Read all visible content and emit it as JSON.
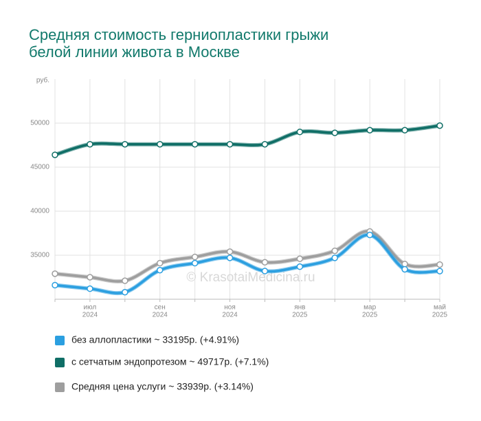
{
  "chart_data": {
    "type": "line",
    "title": [
      "Средняя стоимость герниопластики грыжи",
      "белой линии живота в Москве"
    ],
    "y_unit": "руб.",
    "annotation": "© KrasotaiMedicina.ru",
    "categories": [
      null,
      [
        "июл",
        "2024"
      ],
      null,
      [
        "сен",
        "2024"
      ],
      null,
      [
        "ноя",
        "2024"
      ],
      null,
      [
        "янв",
        "2025"
      ],
      null,
      [
        "мар",
        "2025"
      ],
      null,
      [
        "май",
        "2025"
      ]
    ],
    "series": [
      {
        "name": "без аллопластики ~ 33195р. (+4.91%)",
        "color": "#2b9fe0",
        "values": [
          31600,
          31200,
          30800,
          33300,
          34100,
          34700,
          33200,
          33700,
          34700,
          37300,
          33400,
          33195
        ]
      },
      {
        "name": "с сетчатым эндопротезом ~ 49717р. (+7.1%)",
        "color": "#0f6e66",
        "values": [
          46400,
          47600,
          47600,
          47600,
          47600,
          47600,
          47600,
          49000,
          48900,
          49200,
          49200,
          49717
        ]
      },
      {
        "name": "Средняя цена услуги ~ 33939р. (+3.14%)",
        "color": "#9e9e9e",
        "values": [
          32900,
          32500,
          32100,
          34100,
          34800,
          35400,
          34200,
          34600,
          35500,
          37700,
          34000,
          33939
        ]
      }
    ],
    "ylim": [
      30000,
      55000
    ],
    "yticks": [
      35000,
      40000,
      45000,
      50000
    ],
    "grid": true,
    "legend": "bottom"
  }
}
